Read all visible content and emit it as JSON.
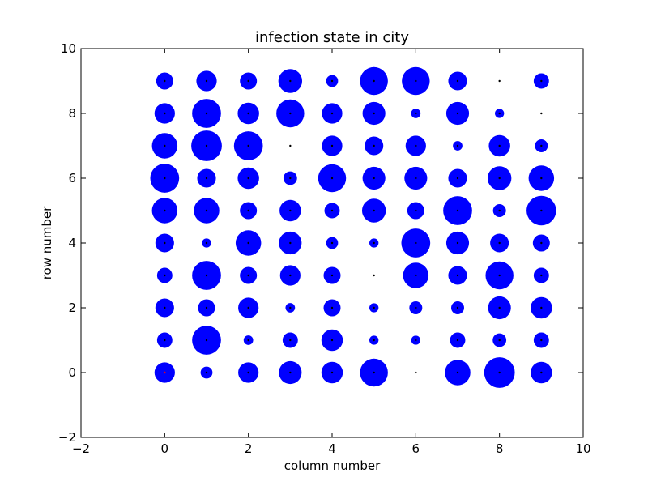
{
  "chart_data": {
    "type": "scatter",
    "title": "infection state in city",
    "xlabel": "column number",
    "ylabel": "row number",
    "xlim": [
      -2,
      10
    ],
    "ylim": [
      -2,
      10
    ],
    "xticks": [
      -2,
      0,
      2,
      4,
      6,
      8,
      10
    ],
    "yticks": [
      -2,
      0,
      2,
      4,
      6,
      8,
      10
    ],
    "xtick_labels": [
      "−2",
      "0",
      "2",
      "4",
      "6",
      "8",
      "10"
    ],
    "ytick_labels": [
      "−2",
      "0",
      "2",
      "4",
      "6",
      "8",
      "10"
    ],
    "grid": false,
    "marker_color": "#0000ff",
    "center_dot_color": "#000000",
    "highlight_dot_color": "#ff0000",
    "size_note": "relative marker size per cell (0-1)",
    "rows": [
      {
        "row": 9,
        "sizes": [
          0.5,
          0.6,
          0.5,
          0.7,
          0.35,
          0.82,
          0.82,
          0.55,
          0.0,
          0.45
        ]
      },
      {
        "row": 8,
        "sizes": [
          0.6,
          0.85,
          0.63,
          0.82,
          0.6,
          0.67,
          0.28,
          0.67,
          0.27,
          0.0
        ]
      },
      {
        "row": 7,
        "sizes": [
          0.75,
          0.9,
          0.85,
          0.0,
          0.6,
          0.55,
          0.6,
          0.28,
          0.63,
          0.38
        ]
      },
      {
        "row": 6,
        "sizes": [
          0.85,
          0.55,
          0.63,
          0.4,
          0.82,
          0.67,
          0.67,
          0.55,
          0.7,
          0.75
        ]
      },
      {
        "row": 5,
        "sizes": [
          0.75,
          0.75,
          0.5,
          0.63,
          0.45,
          0.7,
          0.5,
          0.85,
          0.38,
          0.87
        ]
      },
      {
        "row": 4,
        "sizes": [
          0.55,
          0.27,
          0.75,
          0.67,
          0.35,
          0.27,
          0.85,
          0.67,
          0.55,
          0.5
        ]
      },
      {
        "row": 3,
        "sizes": [
          0.45,
          0.85,
          0.5,
          0.6,
          0.5,
          0.0,
          0.75,
          0.55,
          0.82,
          0.45
        ]
      },
      {
        "row": 2,
        "sizes": [
          0.55,
          0.5,
          0.6,
          0.28,
          0.5,
          0.27,
          0.38,
          0.38,
          0.67,
          0.63
        ]
      },
      {
        "row": 1,
        "sizes": [
          0.45,
          0.85,
          0.28,
          0.45,
          0.63,
          0.27,
          0.27,
          0.45,
          0.4,
          0.45
        ]
      },
      {
        "row": 0,
        "sizes": [
          0.6,
          0.35,
          0.6,
          0.67,
          0.63,
          0.82,
          0.0,
          0.75,
          0.9,
          0.63
        ]
      }
    ],
    "highlight_cell": {
      "column": 0,
      "row": 0
    }
  }
}
